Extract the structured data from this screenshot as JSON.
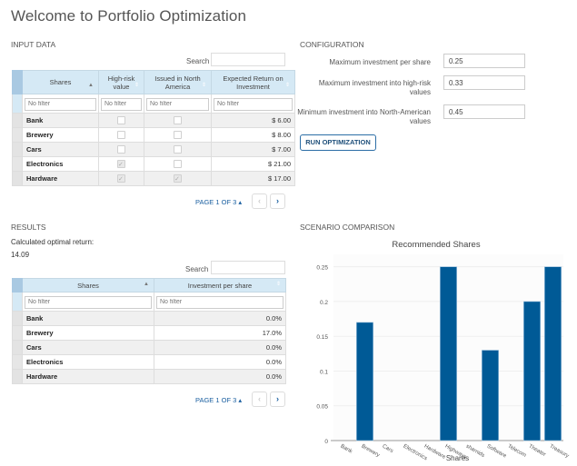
{
  "page": {
    "title": "Welcome to Portfolio Optimization"
  },
  "input_data": {
    "section_label": "INPUT DATA",
    "search_label": "Search",
    "search_value": "",
    "columns": [
      "Shares",
      "High-risk value",
      "Issued in North America",
      "Expected Return on Investment"
    ],
    "filter_placeholder": "No filter",
    "rows": [
      {
        "share": "Bank",
        "high_risk": false,
        "north_america": false,
        "expected_return": "$ 6.00"
      },
      {
        "share": "Brewery",
        "high_risk": false,
        "north_america": false,
        "expected_return": "$ 8.00"
      },
      {
        "share": "Cars",
        "high_risk": false,
        "north_america": false,
        "expected_return": "$ 7.00"
      },
      {
        "share": "Electronics",
        "high_risk": true,
        "north_america": false,
        "expected_return": "$ 21.00"
      },
      {
        "share": "Hardware",
        "high_risk": true,
        "north_america": true,
        "expected_return": "$ 17.00"
      }
    ],
    "pager": {
      "label": "PAGE 1 OF 3",
      "caret": "▴",
      "prev": "‹",
      "next": "›"
    }
  },
  "configuration": {
    "section_label": "CONFIGURATION",
    "fields": [
      {
        "label": "Maximum investment per share",
        "value": "0.25"
      },
      {
        "label": "Maximum investment into high-risk values",
        "value": "0.33"
      },
      {
        "label": "Minimum investment into North-American values",
        "value": "0.45"
      }
    ],
    "run_button": "RUN OPTIMIZATION"
  },
  "results": {
    "section_label": "RESULTS",
    "optimal_label": "Calculated optimal return:",
    "optimal_value": "14.09",
    "search_label": "Search",
    "search_value": "",
    "columns": [
      "Shares",
      "Investment per share"
    ],
    "filter_placeholder": "No filter",
    "rows": [
      {
        "share": "Bank",
        "investment": "0.0%"
      },
      {
        "share": "Brewery",
        "investment": "17.0%"
      },
      {
        "share": "Cars",
        "investment": "0.0%"
      },
      {
        "share": "Electronics",
        "investment": "0.0%"
      },
      {
        "share": "Hardware",
        "investment": "0.0%"
      }
    ],
    "pager": {
      "label": "PAGE 1 OF 3",
      "caret": "▴",
      "prev": "‹",
      "next": "›"
    }
  },
  "scenario": {
    "section_label": "SCENARIO COMPARISON"
  },
  "chart_data": {
    "type": "bar",
    "title": "Recommended Shares",
    "xlabel": "Shares",
    "ylabel": "",
    "categories": [
      "Bank",
      "Brewery",
      "Cars",
      "Electronics",
      "Hardware",
      "Highways",
      "sharnids",
      "Software",
      "Telecom",
      "Theater",
      "Treasury"
    ],
    "values": [
      0,
      0.17,
      0,
      0,
      0,
      0.25,
      0,
      0.13,
      0,
      0.2,
      0.25
    ],
    "ylim": [
      0,
      0.26
    ],
    "yticks": [
      0,
      0.05,
      0.1,
      0.15,
      0.2,
      0.25
    ],
    "ytick_labels": [
      "0",
      "0.05",
      "0.1",
      "0.15",
      "0.2",
      "0.25"
    ],
    "grid": true,
    "legend": "none",
    "bar_color": "#005a96"
  }
}
